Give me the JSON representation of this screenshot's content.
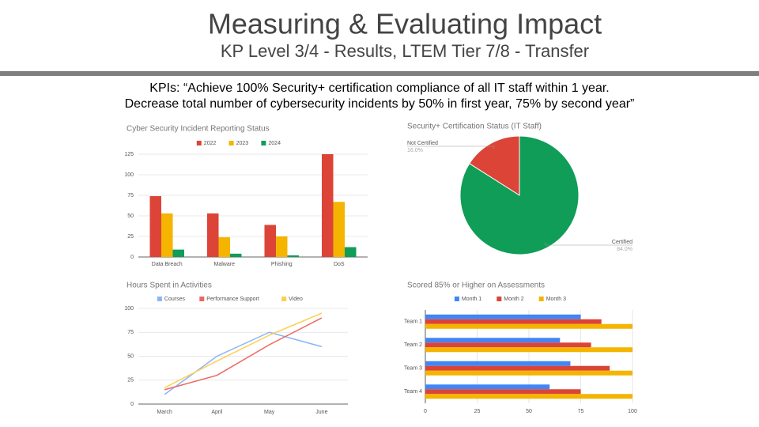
{
  "slide": {
    "title": "Measuring & Evaluating Impact",
    "subtitle": "KP Level 3/4 - Results, LTEM Tier 7/8 - Transfer",
    "kpis": [
      "KPIs: “Achieve 100% Security+ certification compliance of all IT staff within 1 year.",
      "Decrease total number of cybersecurity incidents by 50% in first year, 75% by second year”"
    ]
  },
  "chart_data": [
    {
      "type": "bar",
      "title": "Cyber Security Incident Reporting Status",
      "categories": [
        "Data Breach",
        "Malware",
        "Phishing",
        "DoS"
      ],
      "series": [
        {
          "name": "2022",
          "color": "#db4437",
          "values": [
            74,
            53,
            39,
            125
          ]
        },
        {
          "name": "2023",
          "color": "#f4b400",
          "values": [
            53,
            24,
            25,
            67
          ]
        },
        {
          "name": "2024",
          "color": "#0f9d58",
          "values": [
            9,
            4,
            2,
            12
          ]
        }
      ],
      "ylim": [
        0,
        125
      ],
      "yticks": [
        0,
        25,
        50,
        75,
        100,
        125
      ],
      "grid": true
    },
    {
      "type": "pie",
      "title": "Security+ Certification Status (IT Staff)",
      "categories": [
        "Not Certified",
        "Certified"
      ],
      "values": [
        16,
        84
      ],
      "value_labels": [
        "16.0%",
        "84.0%"
      ],
      "colors": [
        "#db4437",
        "#0f9d58"
      ]
    },
    {
      "type": "line",
      "title": "Hours Spent in Activities",
      "categories": [
        "March",
        "April",
        "May",
        "June"
      ],
      "series": [
        {
          "name": "Courses",
          "color": "#8ab4f8",
          "values": [
            10,
            50,
            75,
            60
          ]
        },
        {
          "name": "Performance Support",
          "color": "#ee675c",
          "values": [
            15,
            30,
            62,
            90
          ]
        },
        {
          "name": "Video",
          "color": "#fcd04f",
          "values": [
            17,
            45,
            72,
            95
          ]
        }
      ],
      "ylim": [
        0,
        100
      ],
      "yticks": [
        0,
        25,
        50,
        75,
        100
      ],
      "grid": true
    },
    {
      "type": "hbar",
      "title": "Scored 85% or Higher on Assessments",
      "categories": [
        "Team 1",
        "Team 2",
        "Team 3",
        "Team 4"
      ],
      "series": [
        {
          "name": "Month 1",
          "color": "#4285f4",
          "values": [
            75,
            65,
            70,
            60
          ]
        },
        {
          "name": "Month 2",
          "color": "#db4437",
          "values": [
            85,
            80,
            89,
            75
          ]
        },
        {
          "name": "Month 3",
          "color": "#f4b400",
          "values": [
            100,
            100,
            100,
            100
          ]
        }
      ],
      "xlim": [
        0,
        100
      ],
      "xticks": [
        0,
        25,
        50,
        75,
        100
      ],
      "grid": true
    }
  ]
}
